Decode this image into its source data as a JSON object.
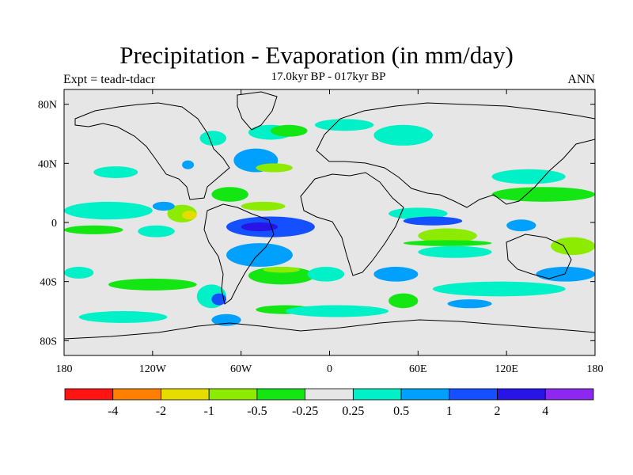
{
  "header": {
    "title": "Precipitation - Evaporation (in mm/day)",
    "subtitle": "17.0kyr BP - 017kyr BP",
    "experiment": "Expt = teadr-tdacr",
    "season": "ANN"
  },
  "colors": {
    "land": "#e6e6e6",
    "coast": "#000000",
    "palette": [
      "#ff1414",
      "#ff8000",
      "#e6dc00",
      "#8ceb00",
      "#14e614",
      "#e6e6e6",
      "#00f0c8",
      "#00a0ff",
      "#1450ff",
      "#2814e6",
      "#8c28f0"
    ]
  },
  "chart_data": {
    "type": "heatmap",
    "projection": "equirectangular",
    "lon_range": [
      -180,
      180
    ],
    "lat_range": [
      -90,
      90
    ],
    "lon_ticks": [
      "180",
      "120W",
      "60W",
      "0",
      "60E",
      "120E",
      "180"
    ],
    "lat_ticks": [
      "80N",
      "40N",
      "0",
      "40S",
      "80S"
    ],
    "colorbar": {
      "levels": [
        "-4",
        "-2",
        "-1",
        "-0.5",
        "-0.25",
        "0.25",
        "0.5",
        "1",
        "2",
        "4"
      ],
      "bin_colors": [
        "#ff1414",
        "#ff8000",
        "#e6dc00",
        "#8ceb00",
        "#14e614",
        "#e6e6e6",
        "#00f0c8",
        "#00a0ff",
        "#1450ff",
        "#2814e6",
        "#8c28f0"
      ]
    },
    "regions": [
      {
        "bin": 6,
        "lon": [
          -180,
          -120
        ],
        "lat": [
          2,
          14
        ]
      },
      {
        "bin": 4,
        "lon": [
          -180,
          -140
        ],
        "lat": [
          -8,
          -2
        ]
      },
      {
        "bin": 3,
        "lon": [
          -110,
          -90
        ],
        "lat": [
          0,
          12
        ]
      },
      {
        "bin": 2,
        "lon": [
          -100,
          -90
        ],
        "lat": [
          2,
          8
        ]
      },
      {
        "bin": 6,
        "lon": [
          -130,
          -105
        ],
        "lat": [
          -10,
          -2
        ]
      },
      {
        "bin": 6,
        "lon": [
          -160,
          -130
        ],
        "lat": [
          30,
          38
        ]
      },
      {
        "bin": 7,
        "lon": [
          -120,
          -105
        ],
        "lat": [
          8,
          14
        ]
      },
      {
        "bin": 7,
        "lon": [
          -100,
          -92
        ],
        "lat": [
          36,
          42
        ]
      },
      {
        "bin": 6,
        "lon": [
          -88,
          -70
        ],
        "lat": [
          52,
          62
        ]
      },
      {
        "bin": 8,
        "lon": [
          -60,
          -40
        ],
        "lat": [
          40,
          48
        ]
      },
      {
        "bin": 7,
        "lon": [
          -65,
          -35
        ],
        "lat": [
          34,
          50
        ]
      },
      {
        "bin": 3,
        "lon": [
          -50,
          -25
        ],
        "lat": [
          34,
          40
        ]
      },
      {
        "bin": 6,
        "lon": [
          -55,
          -25
        ],
        "lat": [
          56,
          66
        ]
      },
      {
        "bin": 4,
        "lon": [
          -40,
          -15
        ],
        "lat": [
          58,
          66
        ]
      },
      {
        "bin": 4,
        "lon": [
          -80,
          -55
        ],
        "lat": [
          14,
          24
        ]
      },
      {
        "bin": 3,
        "lon": [
          -60,
          -30
        ],
        "lat": [
          8,
          14
        ]
      },
      {
        "bin": 8,
        "lon": [
          -70,
          -10
        ],
        "lat": [
          -10,
          4
        ]
      },
      {
        "bin": 9,
        "lon": [
          -60,
          -35
        ],
        "lat": [
          -6,
          0
        ]
      },
      {
        "bin": 7,
        "lon": [
          -70,
          -25
        ],
        "lat": [
          -30,
          -14
        ]
      },
      {
        "bin": 4,
        "lon": [
          -55,
          -10
        ],
        "lat": [
          -42,
          -30
        ]
      },
      {
        "bin": 3,
        "lon": [
          -45,
          -20
        ],
        "lat": [
          -34,
          -30
        ]
      },
      {
        "bin": 6,
        "lon": [
          -15,
          10
        ],
        "lat": [
          -40,
          -30
        ]
      },
      {
        "bin": 4,
        "lon": [
          -150,
          -90
        ],
        "lat": [
          -46,
          -38
        ]
      },
      {
        "bin": 6,
        "lon": [
          -180,
          -160
        ],
        "lat": [
          -38,
          -30
        ]
      },
      {
        "bin": 6,
        "lon": [
          -90,
          -70
        ],
        "lat": [
          -58,
          -42
        ]
      },
      {
        "bin": 8,
        "lon": [
          -80,
          -70
        ],
        "lat": [
          -56,
          -48
        ]
      },
      {
        "bin": 4,
        "lon": [
          -50,
          -10
        ],
        "lat": [
          -62,
          -56
        ]
      },
      {
        "bin": 6,
        "lon": [
          -170,
          -110
        ],
        "lat": [
          -68,
          -60
        ]
      },
      {
        "bin": 7,
        "lon": [
          -80,
          -60
        ],
        "lat": [
          -70,
          -62
        ]
      },
      {
        "bin": 6,
        "lon": [
          -30,
          40
        ],
        "lat": [
          -64,
          -56
        ]
      },
      {
        "bin": 6,
        "lon": [
          40,
          80
        ],
        "lat": [
          2,
          10
        ]
      },
      {
        "bin": 8,
        "lon": [
          50,
          90
        ],
        "lat": [
          -2,
          4
        ]
      },
      {
        "bin": 3,
        "lon": [
          60,
          100
        ],
        "lat": [
          -14,
          -4
        ]
      },
      {
        "bin": 4,
        "lon": [
          50,
          110
        ],
        "lat": [
          -16,
          -12
        ]
      },
      {
        "bin": 6,
        "lon": [
          60,
          110
        ],
        "lat": [
          -24,
          -16
        ]
      },
      {
        "bin": 7,
        "lon": [
          30,
          60
        ],
        "lat": [
          -40,
          -30
        ]
      },
      {
        "bin": 6,
        "lon": [
          70,
          160
        ],
        "lat": [
          -50,
          -40
        ]
      },
      {
        "bin": 4,
        "lon": [
          110,
          180
        ],
        "lat": [
          14,
          24
        ]
      },
      {
        "bin": 6,
        "lon": [
          110,
          160
        ],
        "lat": [
          26,
          36
        ]
      },
      {
        "bin": 7,
        "lon": [
          120,
          140
        ],
        "lat": [
          -6,
          2
        ]
      },
      {
        "bin": 3,
        "lon": [
          150,
          180
        ],
        "lat": [
          -22,
          -10
        ]
      },
      {
        "bin": 7,
        "lon": [
          140,
          180
        ],
        "lat": [
          -40,
          -30
        ]
      },
      {
        "bin": 6,
        "lon": [
          30,
          70
        ],
        "lat": [
          52,
          66
        ]
      },
      {
        "bin": 6,
        "lon": [
          -10,
          30
        ],
        "lat": [
          62,
          70
        ]
      },
      {
        "bin": 4,
        "lon": [
          40,
          60
        ],
        "lat": [
          -58,
          -48
        ]
      },
      {
        "bin": 7,
        "lon": [
          80,
          110
        ],
        "lat": [
          -58,
          -52
        ]
      }
    ]
  }
}
